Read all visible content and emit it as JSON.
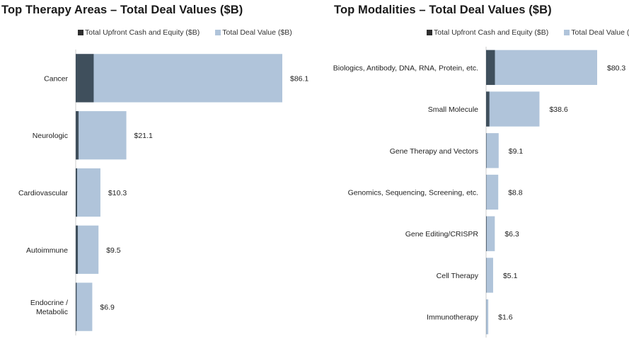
{
  "chart_data": [
    {
      "type": "bar",
      "orientation": "horizontal",
      "title": "Top Therapy Areas – Total Deal Values ($B)",
      "categories": [
        "Cancer",
        "Neurologic",
        "Cardiovascular",
        "Autoimmune",
        "Endocrine / Metabolic"
      ],
      "category_lines": [
        [
          "Cancer"
        ],
        [
          "Neurologic"
        ],
        [
          "Cardiovascular"
        ],
        [
          "Autoimmune"
        ],
        [
          "Endocrine /",
          "Metabolic"
        ]
      ],
      "series": [
        {
          "name": "Total Upfront Cash and Equity ($B)",
          "values": [
            7.5,
            1.2,
            0.6,
            0.9,
            0.4
          ],
          "color": "#3f4f5c"
        },
        {
          "name": "Total Deal Value ($B)",
          "values": [
            86.1,
            21.1,
            10.3,
            9.5,
            6.9
          ],
          "color": "#b0c4da"
        }
      ],
      "value_labels": [
        "$86.1",
        "$21.1",
        "$10.3",
        "$9.5",
        "$6.9"
      ],
      "xlim": [
        0,
        86.1
      ],
      "legend_position": "top",
      "grid": false
    },
    {
      "type": "bar",
      "orientation": "horizontal",
      "title": "Top Modalities – Total Deal Values ($B)",
      "categories": [
        "Biologics, Antibody, DNA, RNA, Protein, etc.",
        "Small Molecule",
        "Gene Therapy and Vectors",
        "Genomics, Sequencing, Screening, etc.",
        "Gene Editing/CRISPR",
        "Cell Therapy",
        "Immunotherapy"
      ],
      "category_lines": [
        [
          "Biologics, Antibody, DNA, RNA, Protein, etc."
        ],
        [
          "Small Molecule"
        ],
        [
          "Gene Therapy and Vectors"
        ],
        [
          "Genomics, Sequencing, Screening, etc."
        ],
        [
          "Gene Editing/CRISPR"
        ],
        [
          "Cell Therapy"
        ],
        [
          "Immunotherapy"
        ]
      ],
      "series": [
        {
          "name": "Total Upfront Cash and Equity ($B)",
          "values": [
            6.4,
            2.4,
            0.3,
            0.2,
            0.4,
            0.2,
            0.1
          ],
          "color": "#3f4f5c"
        },
        {
          "name": "Total Deal Value ($B)",
          "values": [
            80.3,
            38.6,
            9.1,
            8.8,
            6.3,
            5.1,
            1.6
          ],
          "color": "#b0c4da"
        }
      ],
      "value_labels": [
        "$80.3",
        "$38.6",
        "$9.1",
        "$8.8",
        "$6.3",
        "$5.1",
        "$1.6"
      ],
      "xlim": [
        0,
        80.3
      ],
      "legend_position": "top",
      "grid": false
    }
  ]
}
